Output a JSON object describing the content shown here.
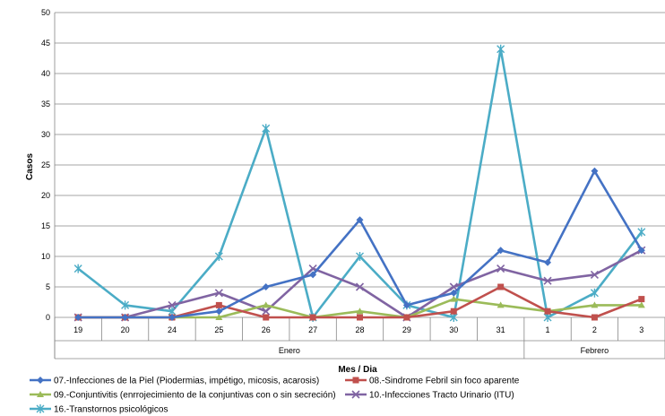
{
  "chart_data": {
    "type": "line",
    "xlabel": "Mes / Dia",
    "ylabel": "Casos",
    "ylim": [
      0,
      50
    ],
    "yticks": [
      0,
      5,
      10,
      15,
      20,
      25,
      30,
      35,
      40,
      45,
      50
    ],
    "grid": "horizontal",
    "legend_position": "bottom",
    "categories": [
      "19",
      "20",
      "24",
      "25",
      "26",
      "27",
      "28",
      "29",
      "30",
      "31",
      "1",
      "2",
      "3"
    ],
    "groups": [
      {
        "label": "Enero",
        "count": 10
      },
      {
        "label": "Febrero",
        "count": 3
      }
    ],
    "series": [
      {
        "name": "07.-Infecciones de la Piel (Piodermias, impétigo, micosis, acarosis)",
        "color": "#4472C4",
        "marker": "diamond",
        "values": [
          0,
          0,
          0,
          1,
          5,
          7,
          16,
          2,
          4,
          11,
          9,
          24,
          11
        ]
      },
      {
        "name": "08.-Sindrome Febril sin foco aparente",
        "color": "#C0504D",
        "marker": "square",
        "values": [
          0,
          0,
          0,
          2,
          0,
          0,
          0,
          0,
          1,
          5,
          1,
          0,
          3
        ]
      },
      {
        "name": "09.-Conjuntivitis (enrrojecimiento de la conjuntivas con o sin secreción)",
        "color": "#9BBB59",
        "marker": "triangle",
        "values": [
          0,
          0,
          0,
          0,
          2,
          0,
          1,
          0,
          3,
          2,
          1,
          2,
          2
        ]
      },
      {
        "name": "10.-Infecciones Tracto Urinario (ITU)",
        "color": "#8064A2",
        "marker": "x",
        "values": [
          0,
          0,
          2,
          4,
          1,
          8,
          5,
          0,
          5,
          8,
          6,
          7,
          11
        ]
      },
      {
        "name": "16.-Transtornos psicológicos",
        "color": "#4BACC6",
        "marker": "star",
        "values": [
          8,
          2,
          1,
          10,
          31,
          0,
          10,
          2,
          0,
          44,
          0,
          4,
          14
        ]
      }
    ]
  }
}
